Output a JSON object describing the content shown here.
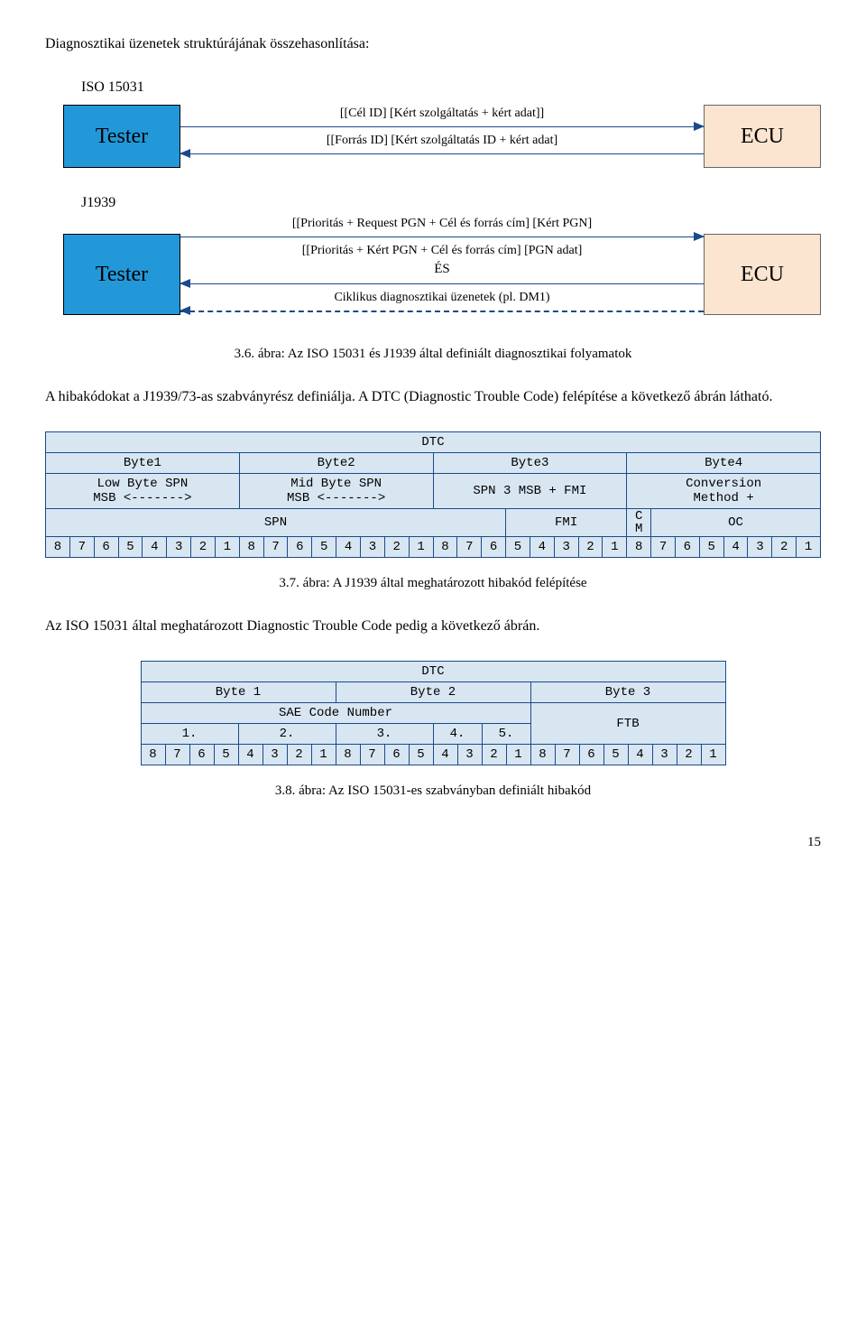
{
  "page": {
    "title": "Diagnosztikai üzenetek struktúrájának összehasonlítása:",
    "page_number": "15"
  },
  "diagram1": {
    "section": "ISO 15031",
    "tester": "Tester",
    "ecu": "ECU",
    "msg_top": "[[Cél ID] [Kért szolgáltatás + kért adat]]",
    "msg_bottom": "[[Forrás ID] [Kért szolgáltatás ID + kért adat]",
    "caption": ""
  },
  "diagram2": {
    "section": "J1939",
    "tester": "Tester",
    "ecu": "ECU",
    "msg_top": "[[Prioritás + Request PGN + Cél és forrás cím] [Kért PGN]",
    "msg_mid": "[[Prioritás + Kért PGN + Cél és forrás cím] [PGN adat]",
    "es": "ÉS",
    "msg_bottom": "Ciklikus diagnosztikai üzenetek (pl. DM1)",
    "caption": "3.6. ábra: Az ISO 15031 és J1939 által definiált diagnosztikai folyamatok"
  },
  "para1": "A hibakódokat a J1939/73-as szabványrész definiálja. A DTC (Diagnostic Trouble Code) felépítése a következő ábrán látható.",
  "dtc_table": {
    "title": "DTC",
    "col_headers": [
      "Byte1",
      "Byte2",
      "Byte3",
      "Byte4"
    ],
    "row2": [
      "Low Byte SPN\nMSB <------->",
      "Mid Byte SPN\nMSB <------->",
      "SPN 3 MSB + FMI",
      "Conversion\nMethod +"
    ],
    "row3_left": "SPN",
    "row3_fmi": "FMI",
    "row3_cm": "C\nM",
    "row3_oc": "OC",
    "bits": [
      "8",
      "7",
      "6",
      "5",
      "4",
      "3",
      "2",
      "1",
      "8",
      "7",
      "6",
      "5",
      "4",
      "3",
      "2",
      "1",
      "8",
      "7",
      "6",
      "5",
      "4",
      "3",
      "2",
      "1",
      "8",
      "7",
      "6",
      "5",
      "4",
      "3",
      "2",
      "1"
    ],
    "caption": "3.7. ábra: A J1939 által meghatározott hibakód felépítése"
  },
  "para2": "Az ISO 15031 által meghatározott Diagnostic Trouble Code pedig a következő ábrán.",
  "dtc_table2": {
    "title": "DTC",
    "byte_headers": [
      "Byte 1",
      "Byte 2",
      "Byte 3"
    ],
    "sae": "SAE Code Number",
    "ftb": "FTB",
    "nibbles": [
      "1.",
      "2.",
      "3.",
      "4.",
      "5."
    ],
    "bits": [
      "8",
      "7",
      "6",
      "5",
      "4",
      "3",
      "2",
      "1",
      "8",
      "7",
      "6",
      "5",
      "4",
      "3",
      "2",
      "1",
      "8",
      "7",
      "6",
      "5",
      "4",
      "3",
      "2",
      "1"
    ],
    "caption": "3.8. ábra: Az ISO 15031-es szabványban definiált hibakód"
  },
  "colors": {
    "tester_bg": "#2298d9",
    "ecu_bg": "#fbe5d0",
    "arrow": "#1a4a8a",
    "table_bg": "#d8e6f2",
    "table_border": "#1a4a8a"
  }
}
